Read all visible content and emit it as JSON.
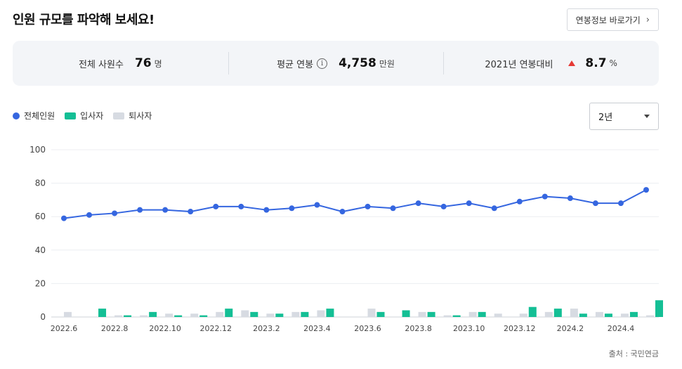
{
  "header": {
    "title": "인원 규모를 파악해 보세요!",
    "link_label": "연봉정보 바로가기"
  },
  "summary": {
    "employees_label": "전체 사원수",
    "employees_value": "76",
    "employees_unit": "명",
    "salary_label": "평균 연봉",
    "salary_value": "4,758",
    "salary_unit": "만원",
    "change_label": "2021년 연봉대비",
    "change_value": "8.7",
    "change_unit": "%"
  },
  "legend": {
    "total": "전체인원",
    "joined": "입사자",
    "left": "퇴사자"
  },
  "colors": {
    "total": "#3566e0",
    "joined": "#14bf95",
    "left": "#d7dbe2",
    "up": "#e53935"
  },
  "period_select": {
    "value": "2년"
  },
  "source": "출처 : 국민연금",
  "chart_data": {
    "type": "line",
    "x": [
      "2022.6",
      "2022.7",
      "2022.8",
      "2022.9",
      "2022.10",
      "2022.11",
      "2022.12",
      "2023.1",
      "2023.2",
      "2023.3",
      "2023.4",
      "2023.5",
      "2023.6",
      "2023.7",
      "2023.8",
      "2023.9",
      "2023.10",
      "2023.11",
      "2023.12",
      "2024.1",
      "2024.2",
      "2024.3",
      "2024.4",
      "2024.5"
    ],
    "tick_labels": [
      "2022.6",
      "2022.8",
      "2022.10",
      "2022.12",
      "2023.2",
      "2023.4",
      "2023.6",
      "2023.8",
      "2023.10",
      "2023.12",
      "2024.2",
      "2024.4"
    ],
    "series": [
      {
        "name": "전체인원",
        "type": "line",
        "values": [
          59,
          61,
          62,
          64,
          64,
          63,
          66,
          66,
          64,
          65,
          67,
          63,
          66,
          65,
          68,
          66,
          68,
          65,
          69,
          72,
          71,
          68,
          68,
          76
        ]
      },
      {
        "name": "입사자",
        "type": "bar",
        "values": [
          0,
          5,
          1,
          3,
          1,
          1,
          5,
          3,
          2,
          3,
          5,
          0,
          3,
          4,
          3,
          1,
          3,
          0,
          6,
          5,
          2,
          2,
          3,
          10
        ]
      },
      {
        "name": "퇴사자",
        "type": "bar",
        "values": [
          3,
          0,
          1,
          1,
          2,
          2,
          3,
          4,
          2,
          3,
          4,
          0,
          5,
          0,
          3,
          1,
          3,
          2,
          2,
          3,
          5,
          3,
          2,
          1
        ]
      }
    ],
    "ylim": [
      0,
      100
    ],
    "yticks": [
      0,
      20,
      40,
      60,
      80,
      100
    ],
    "grid": true,
    "legend": "top-left"
  }
}
